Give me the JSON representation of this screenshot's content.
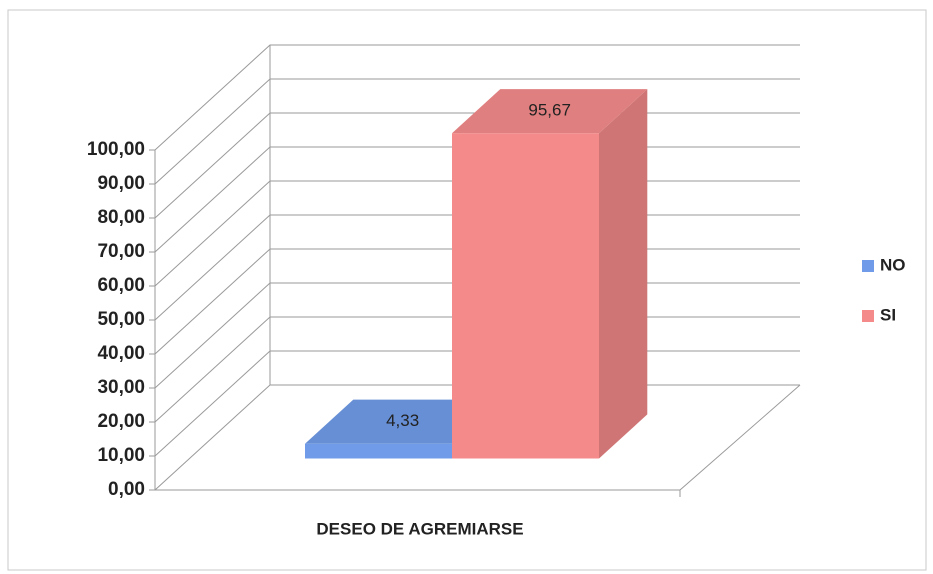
{
  "chart_data": {
    "type": "bar",
    "categories": [
      "DESEO DE AGREMIARSE"
    ],
    "series": [
      {
        "name": "NO",
        "color": "#6f9be8",
        "values": [
          4.33
        ],
        "value_labels": [
          "4,33"
        ]
      },
      {
        "name": "SI",
        "color": "#f48a8a",
        "values": [
          95.67
        ],
        "value_labels": [
          "95,67"
        ]
      }
    ],
    "ylim": [
      0,
      100
    ],
    "yticks": [
      {
        "value": 0,
        "label": "0,00"
      },
      {
        "value": 10,
        "label": "10,00"
      },
      {
        "value": 20,
        "label": "20,00"
      },
      {
        "value": 30,
        "label": "30,00"
      },
      {
        "value": 40,
        "label": "40,00"
      },
      {
        "value": 50,
        "label": "50,00"
      },
      {
        "value": 60,
        "label": "60,00"
      },
      {
        "value": 70,
        "label": "70,00"
      },
      {
        "value": 80,
        "label": "80,00"
      },
      {
        "value": 90,
        "label": "90,00"
      },
      {
        "value": 100,
        "label": "100,00"
      }
    ],
    "grid": true,
    "legend": "right"
  }
}
